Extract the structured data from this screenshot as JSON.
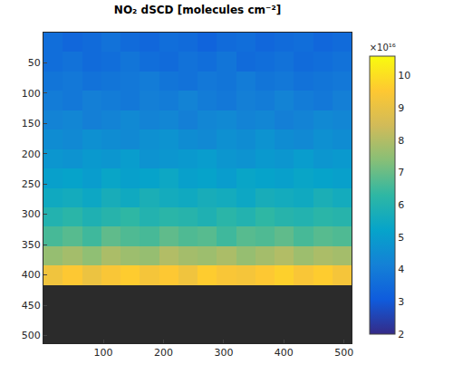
{
  "chart_data": {
    "type": "heatmap",
    "title": "NO₂ dSCD [molecules cm⁻²]",
    "x": [
      16.5,
      48.5,
      80.5,
      112.5,
      144.5,
      176.5,
      208.5,
      240.5,
      272.5,
      304.5,
      336.5,
      368.5,
      400.5,
      432.5,
      464.5,
      496.5
    ],
    "y": [
      16.5,
      48.5,
      80.5,
      112.5,
      144.5,
      176.5,
      208.5,
      240.5,
      272.5,
      304.5,
      336.5,
      368.5,
      400.5,
      432.5,
      464.5,
      496.5
    ],
    "cells": [
      [
        3.6,
        3.4,
        3.5,
        3.7,
        3.5,
        3.4,
        3.6,
        3.5,
        3.3,
        3.5,
        3.6,
        3.4,
        3.5,
        3.6,
        3.4,
        3.5
      ],
      [
        3.6,
        3.7,
        3.5,
        3.6,
        3.8,
        3.6,
        3.5,
        3.7,
        3.6,
        3.8,
        3.5,
        3.6,
        3.7,
        3.5,
        3.6,
        3.7
      ],
      [
        3.8,
        3.9,
        3.7,
        3.8,
        3.9,
        4.0,
        3.8,
        3.7,
        3.9,
        3.8,
        4.0,
        3.8,
        3.9,
        3.7,
        3.8,
        3.9
      ],
      [
        4.0,
        3.9,
        4.1,
        4.0,
        3.9,
        4.1,
        4.0,
        4.2,
        4.0,
        3.9,
        4.1,
        4.0,
        4.2,
        4.0,
        3.9,
        4.1
      ],
      [
        4.2,
        4.3,
        4.1,
        4.2,
        4.4,
        4.2,
        4.3,
        4.1,
        4.3,
        4.4,
        4.2,
        4.3,
        4.1,
        4.2,
        4.4,
        4.3
      ],
      [
        4.5,
        4.4,
        4.6,
        4.5,
        4.4,
        4.6,
        4.7,
        4.5,
        4.4,
        4.6,
        4.5,
        4.7,
        4.5,
        4.4,
        4.6,
        4.5
      ],
      [
        4.8,
        4.7,
        4.9,
        4.8,
        5.0,
        4.7,
        4.8,
        4.9,
        5.0,
        4.8,
        4.7,
        4.9,
        4.8,
        5.0,
        4.8,
        4.9
      ],
      [
        5.1,
        5.2,
        5.0,
        5.3,
        5.1,
        5.2,
        5.4,
        5.1,
        5.2,
        5.0,
        5.3,
        5.2,
        5.1,
        5.3,
        5.2,
        5.1
      ],
      [
        5.5,
        5.6,
        5.4,
        5.7,
        5.5,
        5.8,
        5.6,
        5.5,
        5.7,
        5.6,
        5.4,
        5.7,
        5.6,
        5.5,
        5.8,
        5.6
      ],
      [
        6.0,
        6.2,
        5.9,
        6.1,
        6.3,
        6.0,
        6.2,
        6.1,
        5.9,
        6.2,
        6.0,
        6.3,
        6.1,
        6.0,
        6.2,
        6.1
      ],
      [
        6.6,
        6.8,
        6.5,
        6.9,
        6.7,
        6.6,
        6.9,
        6.7,
        6.8,
        6.5,
        6.8,
        6.7,
        6.9,
        6.6,
        6.8,
        6.7
      ],
      [
        7.6,
        7.8,
        7.5,
        7.9,
        7.7,
        7.6,
        8.0,
        7.8,
        7.7,
        7.9,
        7.6,
        7.8,
        8.0,
        7.7,
        7.9,
        7.8
      ],
      [
        9.2,
        9.5,
        9.1,
        9.4,
        9.6,
        9.3,
        9.5,
        9.2,
        9.6,
        9.4,
        9.3,
        9.5,
        9.7,
        9.4,
        9.6,
        9.3
      ],
      [
        null,
        null,
        null,
        null,
        null,
        null,
        null,
        null,
        null,
        null,
        null,
        null,
        null,
        null,
        null,
        null
      ],
      [
        null,
        null,
        null,
        null,
        null,
        null,
        null,
        null,
        null,
        null,
        null,
        null,
        null,
        null,
        null,
        null
      ],
      [
        null,
        null,
        null,
        null,
        null,
        null,
        null,
        null,
        null,
        null,
        null,
        null,
        null,
        null,
        null,
        null
      ]
    ],
    "xlim": [
      0.5,
      512.5
    ],
    "ylim": [
      512.5,
      0.5
    ],
    "xticks": [
      100,
      200,
      300,
      400,
      500
    ],
    "yticks": [
      50,
      100,
      150,
      200,
      250,
      300,
      350,
      400,
      450,
      500
    ],
    "colorbar_lim": [
      2,
      10.6
    ],
    "colorbar_ticks": [
      2,
      3,
      4,
      5,
      6,
      7,
      8,
      9,
      10
    ],
    "colorbar_label": "×10¹⁶",
    "grid": false
  }
}
